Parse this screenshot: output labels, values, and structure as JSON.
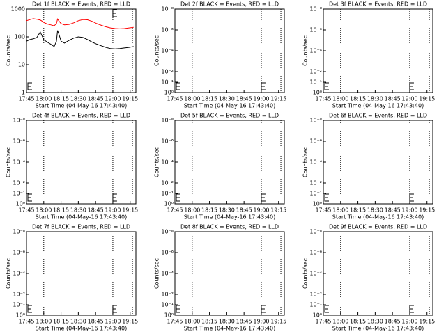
{
  "chart_data": [
    {
      "type": "line",
      "title": "Det 1f BLACK = Events, RED = LLD",
      "xlabel": "Start Time (04-May-16 17:43:40)",
      "ylabel": "Counts/sec",
      "log_y": true,
      "xlim": [
        1065,
        1160
      ],
      "xticks": [
        {
          "value": 1065,
          "label": "17:45"
        },
        {
          "value": 1080,
          "label": "18:00"
        },
        {
          "value": 1095,
          "label": "18:15"
        },
        {
          "value": 1110,
          "label": "18:30"
        },
        {
          "value": 1125,
          "label": "18:45"
        },
        {
          "value": 1140,
          "label": "19:00"
        },
        {
          "value": 1155,
          "label": "19:15"
        }
      ],
      "ylim": [
        1,
        1000
      ],
      "yticks": [
        1,
        10,
        100,
        1000
      ],
      "markers": [
        1080,
        1140,
        1157
      ],
      "x": [
        1065,
        1068,
        1071,
        1074,
        1077,
        1078,
        1080,
        1083,
        1086,
        1089,
        1091,
        1092,
        1093,
        1095,
        1098,
        1102,
        1106,
        1110,
        1114,
        1118,
        1122,
        1126,
        1130,
        1134,
        1138,
        1142,
        1146,
        1150,
        1154,
        1158
      ],
      "series": [
        {
          "color": "#ff0000",
          "values": [
            380,
            420,
            450,
            430,
            400,
            380,
            330,
            290,
            270,
            250,
            300,
            440,
            380,
            300,
            270,
            280,
            320,
            380,
            420,
            410,
            360,
            300,
            260,
            230,
            210,
            200,
            195,
            200,
            210,
            220
          ]
        },
        {
          "color": "#000000",
          "values": [
            70,
            80,
            85,
            95,
            150,
            120,
            80,
            65,
            55,
            45,
            70,
            170,
            130,
            70,
            60,
            75,
            90,
            100,
            95,
            80,
            65,
            55,
            48,
            42,
            38,
            37,
            38,
            40,
            42,
            45
          ]
        }
      ]
    },
    {
      "type": "line",
      "title": "Det 2f BLACK = Events, RED = LLD",
      "xlabel": "Start Time (04-May-16 17:43:40)",
      "ylabel": "Counts/sec",
      "log_y": true,
      "xlim": [
        1065,
        1160
      ],
      "xticks": [
        {
          "value": 1065,
          "label": "17:45"
        },
        {
          "value": 1080,
          "label": "18:00"
        },
        {
          "value": 1095,
          "label": "18:15"
        },
        {
          "value": 1110,
          "label": "18:30"
        },
        {
          "value": 1125,
          "label": "18:45"
        },
        {
          "value": 1140,
          "label": "19:00"
        },
        {
          "value": 1155,
          "label": "19:15"
        }
      ],
      "ylim": [
        1,
        1e-08
      ],
      "yticks": [
        {
          "value": 1,
          "label": "10⁰"
        },
        {
          "value": 0.1,
          "label": "10⁻¹"
        },
        {
          "value": 0.01,
          "label": "10⁻²"
        },
        {
          "value": 0.0001,
          "label": "10⁻⁴"
        },
        {
          "value": 1e-06,
          "label": "10⁻⁶"
        },
        {
          "value": 1e-08,
          "label": "10⁻⁸"
        }
      ],
      "markers": [
        1080,
        1140,
        1157
      ]
    },
    {
      "type": "line",
      "title": "Det 3f BLACK = Events, RED = LLD",
      "xlabel": "Start Time (04-May-16 17:43:40)",
      "ylabel": "Counts/sec",
      "log_y": true,
      "xlim": [
        1065,
        1160
      ],
      "xticks": [
        {
          "value": 1065,
          "label": "17:45"
        },
        {
          "value": 1080,
          "label": "18:00"
        },
        {
          "value": 1095,
          "label": "18:15"
        },
        {
          "value": 1110,
          "label": "18:30"
        },
        {
          "value": 1125,
          "label": "18:45"
        },
        {
          "value": 1140,
          "label": "19:00"
        },
        {
          "value": 1155,
          "label": "19:15"
        }
      ],
      "ylim": [
        1,
        1e-08
      ],
      "yticks": [
        {
          "value": 1,
          "label": "10⁰"
        },
        {
          "value": 0.1,
          "label": "10⁻¹"
        },
        {
          "value": 0.01,
          "label": "10⁻²"
        },
        {
          "value": 0.0001,
          "label": "10⁻⁴"
        },
        {
          "value": 1e-06,
          "label": "10⁻⁶"
        },
        {
          "value": 1e-08,
          "label": "10⁻⁸"
        }
      ],
      "markers": [
        1080,
        1140,
        1157
      ]
    },
    {
      "type": "line",
      "title": "Det 4f BLACK = Events, RED = LLD",
      "xlabel": "Start Time (04-May-16 17:43:40)",
      "ylabel": "Counts/sec",
      "log_y": true,
      "xlim": [
        1065,
        1160
      ],
      "xticks": [
        {
          "value": 1065,
          "label": "17:45"
        },
        {
          "value": 1080,
          "label": "18:00"
        },
        {
          "value": 1095,
          "label": "18:15"
        },
        {
          "value": 1110,
          "label": "18:30"
        },
        {
          "value": 1125,
          "label": "18:45"
        },
        {
          "value": 1140,
          "label": "19:00"
        },
        {
          "value": 1155,
          "label": "19:15"
        }
      ],
      "ylim": [
        1,
        1e-08
      ],
      "yticks": [
        {
          "value": 1,
          "label": "10⁰"
        },
        {
          "value": 0.1,
          "label": "10⁻¹"
        },
        {
          "value": 0.01,
          "label": "10⁻²"
        },
        {
          "value": 0.0001,
          "label": "10⁻⁴"
        },
        {
          "value": 1e-06,
          "label": "10⁻⁶"
        },
        {
          "value": 1e-08,
          "label": "10⁻⁸"
        }
      ],
      "markers": [
        1080,
        1140,
        1157
      ]
    },
    {
      "type": "line",
      "title": "Det 5f BLACK = Events, RED = LLD",
      "xlabel": "Start Time (04-May-16 17:43:40)",
      "ylabel": "Counts/sec",
      "log_y": true,
      "xlim": [
        1065,
        1160
      ],
      "xticks": [
        {
          "value": 1065,
          "label": "17:45"
        },
        {
          "value": 1080,
          "label": "18:00"
        },
        {
          "value": 1095,
          "label": "18:15"
        },
        {
          "value": 1110,
          "label": "18:30"
        },
        {
          "value": 1125,
          "label": "18:45"
        },
        {
          "value": 1140,
          "label": "19:00"
        },
        {
          "value": 1155,
          "label": "19:15"
        }
      ],
      "ylim": [
        1,
        1e-08
      ],
      "yticks": [
        {
          "value": 1,
          "label": "10⁰"
        },
        {
          "value": 0.1,
          "label": "10⁻¹"
        },
        {
          "value": 0.01,
          "label": "10⁻²"
        },
        {
          "value": 0.0001,
          "label": "10⁻⁴"
        },
        {
          "value": 1e-06,
          "label": "10⁻⁶"
        },
        {
          "value": 1e-08,
          "label": "10⁻⁸"
        }
      ],
      "markers": [
        1080,
        1140,
        1157
      ]
    },
    {
      "type": "line",
      "title": "Det 6f BLACK = Events, RED = LLD",
      "xlabel": "Start Time (04-May-16 17:43:40)",
      "ylabel": "Counts/sec",
      "log_y": true,
      "xlim": [
        1065,
        1160
      ],
      "xticks": [
        {
          "value": 1065,
          "label": "17:45"
        },
        {
          "value": 1080,
          "label": "18:00"
        },
        {
          "value": 1095,
          "label": "18:15"
        },
        {
          "value": 1110,
          "label": "18:30"
        },
        {
          "value": 1125,
          "label": "18:45"
        },
        {
          "value": 1140,
          "label": "19:00"
        },
        {
          "value": 1155,
          "label": "19:15"
        }
      ],
      "ylim": [
        1,
        1e-08
      ],
      "yticks": [
        {
          "value": 1,
          "label": "10⁰"
        },
        {
          "value": 0.1,
          "label": "10⁻¹"
        },
        {
          "value": 0.01,
          "label": "10⁻²"
        },
        {
          "value": 0.0001,
          "label": "10⁻⁴"
        },
        {
          "value": 1e-06,
          "label": "10⁻⁶"
        },
        {
          "value": 1e-08,
          "label": "10⁻⁸"
        }
      ],
      "markers": [
        1080,
        1140,
        1157
      ]
    },
    {
      "type": "line",
      "title": "Det 7f BLACK = Events, RED = LLD",
      "xlabel": "Start Time (04-May-16 17:43:40)",
      "ylabel": "Counts/sec",
      "log_y": true,
      "xlim": [
        1065,
        1160
      ],
      "xticks": [
        {
          "value": 1065,
          "label": "17:45"
        },
        {
          "value": 1080,
          "label": "18:00"
        },
        {
          "value": 1095,
          "label": "18:15"
        },
        {
          "value": 1110,
          "label": "18:30"
        },
        {
          "value": 1125,
          "label": "18:45"
        },
        {
          "value": 1140,
          "label": "19:00"
        },
        {
          "value": 1155,
          "label": "19:15"
        }
      ],
      "ylim": [
        1,
        1e-08
      ],
      "yticks": [
        {
          "value": 1,
          "label": "10⁰"
        },
        {
          "value": 0.1,
          "label": "10⁻¹"
        },
        {
          "value": 0.01,
          "label": "10⁻²"
        },
        {
          "value": 0.0001,
          "label": "10⁻⁴"
        },
        {
          "value": 1e-06,
          "label": "10⁻⁶"
        },
        {
          "value": 1e-08,
          "label": "10⁻⁸"
        }
      ],
      "markers": [
        1080,
        1140,
        1157
      ]
    },
    {
      "type": "line",
      "title": "Det 8f BLACK = Events, RED = LLD",
      "xlabel": "Start Time (04-May-16 17:43:40)",
      "ylabel": "Counts/sec",
      "log_y": true,
      "xlim": [
        1065,
        1160
      ],
      "xticks": [
        {
          "value": 1065,
          "label": "17:45"
        },
        {
          "value": 1080,
          "label": "18:00"
        },
        {
          "value": 1095,
          "label": "18:15"
        },
        {
          "value": 1110,
          "label": "18:30"
        },
        {
          "value": 1125,
          "label": "18:45"
        },
        {
          "value": 1140,
          "label": "19:00"
        },
        {
          "value": 1155,
          "label": "19:15"
        }
      ],
      "ylim": [
        1,
        1e-08
      ],
      "yticks": [
        {
          "value": 1,
          "label": "10⁰"
        },
        {
          "value": 0.1,
          "label": "10⁻¹"
        },
        {
          "value": 0.01,
          "label": "10⁻²"
        },
        {
          "value": 0.0001,
          "label": "10⁻⁴"
        },
        {
          "value": 1e-06,
          "label": "10⁻⁶"
        },
        {
          "value": 1e-08,
          "label": "10⁻⁸"
        }
      ],
      "markers": [
        1080,
        1140,
        1157
      ]
    },
    {
      "type": "line",
      "title": "Det 9f BLACK = Events, RED = LLD",
      "xlabel": "Start Time (04-May-16 17:43:40)",
      "ylabel": "Counts/sec",
      "log_y": true,
      "xlim": [
        1065,
        1160
      ],
      "xticks": [
        {
          "value": 1065,
          "label": "17:45"
        },
        {
          "value": 1080,
          "label": "18:00"
        },
        {
          "value": 1095,
          "label": "18:15"
        },
        {
          "value": 1110,
          "label": "18:30"
        },
        {
          "value": 1125,
          "label": "18:45"
        },
        {
          "value": 1140,
          "label": "19:00"
        },
        {
          "value": 1155,
          "label": "19:15"
        }
      ],
      "ylim": [
        1,
        1e-08
      ],
      "yticks": [
        {
          "value": 1,
          "label": "10⁰"
        },
        {
          "value": 0.1,
          "label": "10⁻¹"
        },
        {
          "value": 0.01,
          "label": "10⁻²"
        },
        {
          "value": 0.0001,
          "label": "10⁻⁴"
        },
        {
          "value": 1e-06,
          "label": "10⁻⁶"
        },
        {
          "value": 1e-08,
          "label": "10⁻⁸"
        }
      ],
      "markers": [
        1080,
        1140,
        1157
      ]
    }
  ]
}
